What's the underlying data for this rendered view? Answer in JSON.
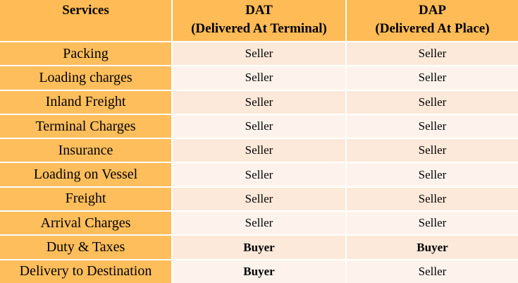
{
  "table": {
    "header": [
      [
        "Services"
      ],
      [
        "DAT",
        "(Delivered At Terminal)"
      ],
      [
        "DAP",
        "(Delivered At Place)"
      ]
    ],
    "rows": [
      {
        "cells": [
          "Packing",
          "Seller",
          "Seller"
        ],
        "bold": [
          false,
          false,
          false
        ]
      },
      {
        "cells": [
          "Loading charges",
          "Seller",
          "Seller"
        ],
        "bold": [
          false,
          false,
          false
        ]
      },
      {
        "cells": [
          "Inland Freight",
          "Seller",
          "Seller"
        ],
        "bold": [
          false,
          false,
          false
        ]
      },
      {
        "cells": [
          "Terminal Charges",
          "Seller",
          "Seller"
        ],
        "bold": [
          false,
          false,
          false
        ]
      },
      {
        "cells": [
          "Insurance",
          "Seller",
          "Seller"
        ],
        "bold": [
          false,
          false,
          false
        ]
      },
      {
        "cells": [
          "Loading on Vessel",
          "Seller",
          "Seller"
        ],
        "bold": [
          false,
          false,
          false
        ]
      },
      {
        "cells": [
          "Freight",
          "Seller",
          "Seller"
        ],
        "bold": [
          false,
          false,
          false
        ]
      },
      {
        "cells": [
          "Arrival Charges",
          "Seller",
          "Seller"
        ],
        "bold": [
          false,
          false,
          false
        ]
      },
      {
        "cells": [
          "Duty & Taxes",
          "Buyer",
          "Buyer"
        ],
        "bold": [
          false,
          true,
          true
        ]
      },
      {
        "cells": [
          "Delivery to Destination",
          "Buyer",
          "Seller"
        ],
        "bold": [
          false,
          true,
          false
        ]
      }
    ]
  }
}
